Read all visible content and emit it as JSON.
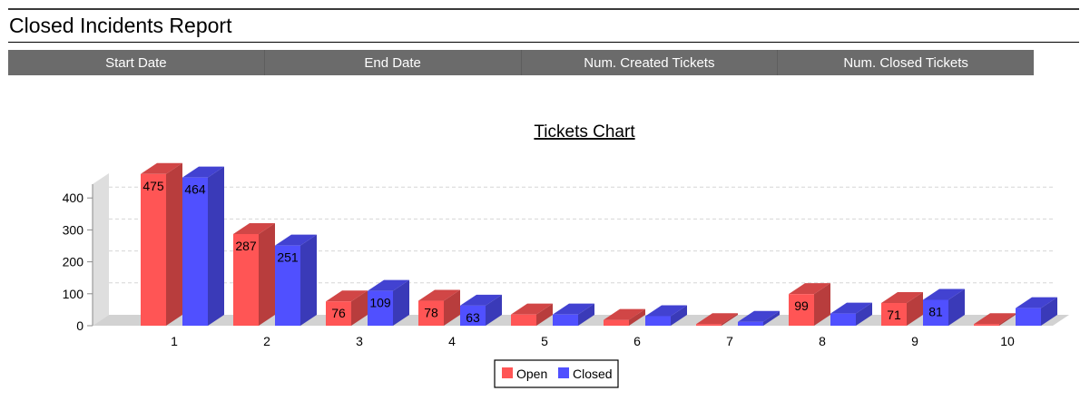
{
  "report": {
    "title": "Closed Incidents Report"
  },
  "table": {
    "headers": [
      "Start Date",
      "End Date",
      "Num. Created Tickets",
      "Num. Closed Tickets"
    ]
  },
  "chart_data": {
    "type": "bar",
    "title": "Tickets Chart",
    "xlabel": "",
    "ylabel": "",
    "categories": [
      "1",
      "2",
      "3",
      "4",
      "5",
      "6",
      "7",
      "8",
      "9",
      "10"
    ],
    "series": [
      {
        "name": "Open",
        "color": "#ff5555",
        "values": [
          475,
          287,
          76,
          78,
          35,
          18,
          5,
          99,
          71,
          5
        ],
        "labels": [
          "475",
          "287",
          "76",
          "78",
          "",
          "",
          "",
          "99",
          "71",
          ""
        ]
      },
      {
        "name": "Closed",
        "color": "#5050ff",
        "values": [
          464,
          251,
          109,
          63,
          35,
          30,
          12,
          38,
          81,
          55
        ],
        "labels": [
          "464",
          "251",
          "109",
          "63",
          "",
          "",
          "",
          "",
          "81",
          ""
        ]
      }
    ],
    "yticks": [
      0,
      100,
      200,
      300,
      400
    ],
    "ylim": [
      0,
      500
    ],
    "grid": true,
    "legend": "bottom-center"
  }
}
